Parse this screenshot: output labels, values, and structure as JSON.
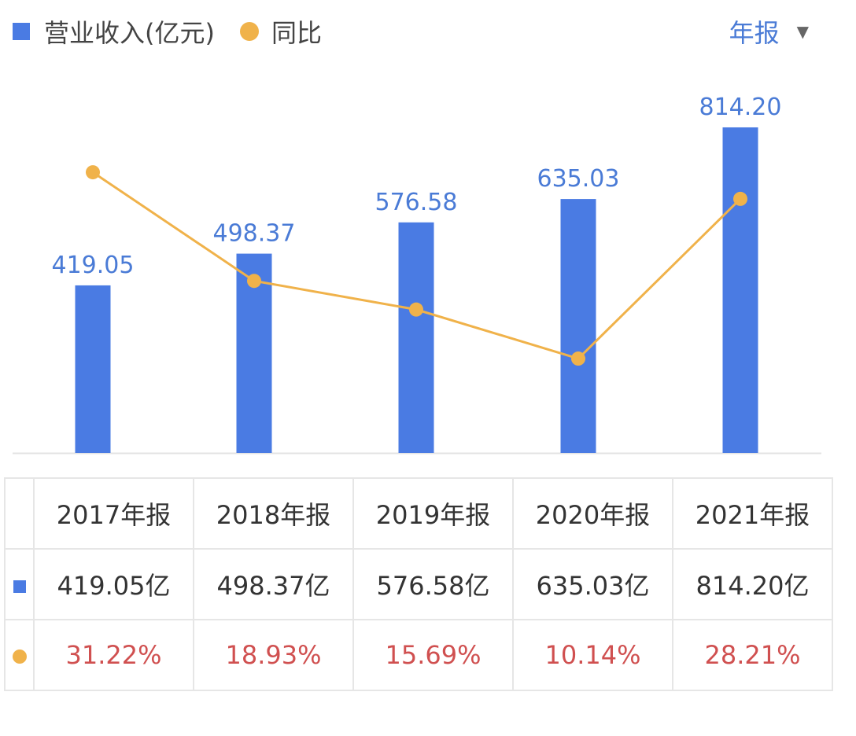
{
  "chart_data": {
    "type": "bar+line",
    "categories": [
      "2017年报",
      "2018年报",
      "2019年报",
      "2020年报",
      "2021年报"
    ],
    "series": [
      {
        "name": "营业收入(亿元)",
        "type": "bar",
        "color": "#4a7be3",
        "values": [
          419.05,
          498.37,
          576.58,
          635.03,
          814.2
        ],
        "labels": [
          "419.05",
          "498.37",
          "576.58",
          "635.03",
          "814.20"
        ]
      },
      {
        "name": "同比",
        "type": "line",
        "color": "#f0b24a",
        "values": [
          31.22,
          18.93,
          15.69,
          10.14,
          28.21
        ]
      }
    ],
    "grid": false,
    "legend": "top-left"
  },
  "period_selector": {
    "label": "年报",
    "icon": "caret-down-icon"
  },
  "table": {
    "headers": [
      "2017年报",
      "2018年报",
      "2019年报",
      "2020年报",
      "2021年报"
    ],
    "revenue": [
      "419.05亿",
      "498.37亿",
      "576.58亿",
      "635.03亿",
      "814.20亿"
    ],
    "yoy": [
      "31.22%",
      "18.93%",
      "15.69%",
      "10.14%",
      "28.21%"
    ],
    "pct_color": "#d05050"
  }
}
